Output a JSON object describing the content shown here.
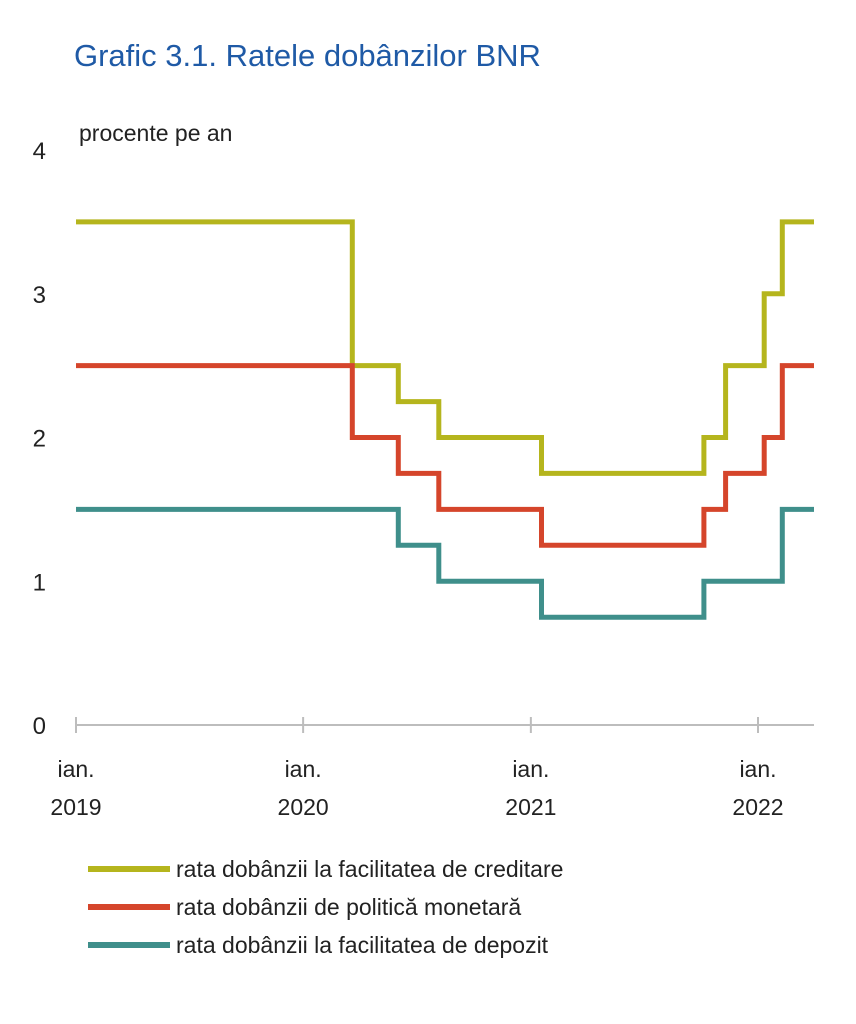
{
  "chart_data": {
    "type": "line",
    "title": "Grafic 3.1. Ratele dobânzilor BNR",
    "unit_label": "procente pe an",
    "y_ticks": [
      "0",
      "1",
      "2",
      "3",
      "4"
    ],
    "x_ticks": [
      {
        "line1": "ian.",
        "line2": "2019",
        "date": "2019-01-01"
      },
      {
        "line1": "ian.",
        "line2": "2020",
        "date": "2020-01-01"
      },
      {
        "line1": "ian.",
        "line2": "2021",
        "date": "2021-01-01"
      },
      {
        "line1": "ian.",
        "line2": "2022",
        "date": "2022-01-01"
      }
    ],
    "ylim": [
      0,
      4
    ],
    "xlim": [
      "2019-01-01",
      "2022-04-01"
    ],
    "grid": false,
    "legend_position": "bottom",
    "step": true,
    "series": [
      {
        "name": "rata dobânzii la facilitatea de creditare",
        "color": "#b5b51d",
        "points": [
          [
            "2019-01-01",
            3.5
          ],
          [
            "2020-03-20",
            2.5
          ],
          [
            "2020-06-02",
            2.25
          ],
          [
            "2020-08-06",
            2.0
          ],
          [
            "2021-01-18",
            1.75
          ],
          [
            "2021-10-06",
            2.0
          ],
          [
            "2021-11-10",
            2.5
          ],
          [
            "2022-01-11",
            3.0
          ],
          [
            "2022-02-09",
            3.5
          ],
          [
            "2022-04-01",
            3.5
          ]
        ]
      },
      {
        "name": "rata dobânzii de politică monetară",
        "color": "#d5452b",
        "points": [
          [
            "2019-01-01",
            2.5
          ],
          [
            "2020-03-20",
            2.0
          ],
          [
            "2020-06-02",
            1.75
          ],
          [
            "2020-08-06",
            1.5
          ],
          [
            "2021-01-18",
            1.25
          ],
          [
            "2021-10-06",
            1.5
          ],
          [
            "2021-11-10",
            1.75
          ],
          [
            "2022-01-11",
            2.0
          ],
          [
            "2022-02-09",
            2.5
          ],
          [
            "2022-04-01",
            2.5
          ]
        ]
      },
      {
        "name": "rata dobânzii la facilitatea de depozit",
        "color": "#3f8f8b",
        "points": [
          [
            "2019-01-01",
            1.5
          ],
          [
            "2020-06-02",
            1.25
          ],
          [
            "2020-08-06",
            1.0
          ],
          [
            "2021-01-18",
            0.75
          ],
          [
            "2021-10-06",
            1.0
          ],
          [
            "2022-02-09",
            1.5
          ],
          [
            "2022-04-01",
            1.5
          ]
        ]
      }
    ]
  }
}
